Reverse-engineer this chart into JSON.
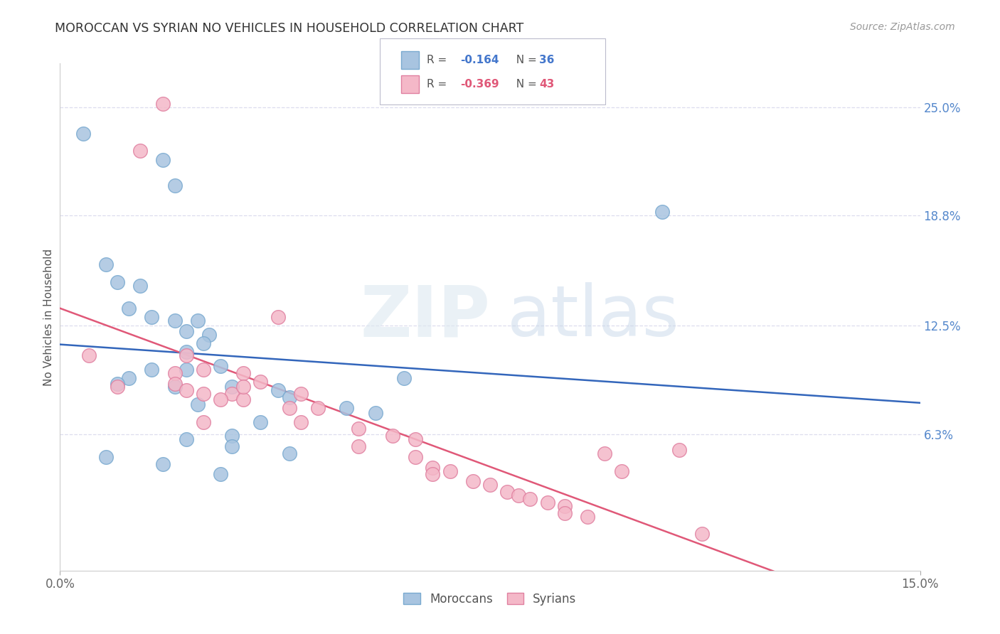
{
  "title": "MOROCCAN VS SYRIAN NO VEHICLES IN HOUSEHOLD CORRELATION CHART",
  "source": "Source: ZipAtlas.com",
  "ylabel": "No Vehicles in Household",
  "ylabel_ticks_right": [
    "25.0%",
    "18.8%",
    "12.5%",
    "6.3%"
  ],
  "ylabel_ticks_right_vals": [
    0.25,
    0.188,
    0.125,
    0.063
  ],
  "x_min": 0.0,
  "x_max": 0.15,
  "y_min": -0.015,
  "y_max": 0.275,
  "moroccan_color": "#a8c4e0",
  "moroccan_edge": "#7aaad0",
  "syrian_color": "#f4b8c8",
  "syrian_edge": "#e080a0",
  "line_moroccan_color": "#3366bb",
  "line_syrian_color": "#e05878",
  "background_color": "#ffffff",
  "grid_color": "#ddddee",
  "legend_R_moroccan": "-0.164",
  "legend_N_moroccan": "36",
  "legend_R_syrian": "-0.369",
  "legend_N_syrian": "43",
  "moroccan_x": [
    0.004,
    0.018,
    0.02,
    0.008,
    0.01,
    0.014,
    0.012,
    0.016,
    0.02,
    0.024,
    0.022,
    0.026,
    0.025,
    0.022,
    0.016,
    0.012,
    0.01,
    0.02,
    0.03,
    0.038,
    0.04,
    0.024,
    0.05,
    0.055,
    0.035,
    0.03,
    0.022,
    0.03,
    0.04,
    0.008,
    0.018,
    0.028,
    0.06,
    0.105,
    0.022,
    0.028
  ],
  "moroccan_y": [
    0.235,
    0.22,
    0.205,
    0.16,
    0.15,
    0.148,
    0.135,
    0.13,
    0.128,
    0.128,
    0.122,
    0.12,
    0.115,
    0.11,
    0.1,
    0.095,
    0.092,
    0.09,
    0.09,
    0.088,
    0.084,
    0.08,
    0.078,
    0.075,
    0.07,
    0.062,
    0.06,
    0.056,
    0.052,
    0.05,
    0.046,
    0.04,
    0.095,
    0.19,
    0.1,
    0.102
  ],
  "syrian_x": [
    0.018,
    0.014,
    0.005,
    0.022,
    0.02,
    0.025,
    0.02,
    0.01,
    0.022,
    0.025,
    0.03,
    0.028,
    0.032,
    0.038,
    0.032,
    0.035,
    0.032,
    0.042,
    0.04,
    0.045,
    0.025,
    0.042,
    0.052,
    0.058,
    0.062,
    0.052,
    0.062,
    0.065,
    0.068,
    0.065,
    0.072,
    0.075,
    0.078,
    0.08,
    0.082,
    0.085,
    0.088,
    0.088,
    0.092,
    0.095,
    0.098,
    0.108,
    0.112
  ],
  "syrian_y": [
    0.252,
    0.225,
    0.108,
    0.108,
    0.098,
    0.1,
    0.092,
    0.09,
    0.088,
    0.086,
    0.086,
    0.083,
    0.083,
    0.13,
    0.098,
    0.093,
    0.09,
    0.086,
    0.078,
    0.078,
    0.07,
    0.07,
    0.066,
    0.062,
    0.06,
    0.056,
    0.05,
    0.044,
    0.042,
    0.04,
    0.036,
    0.034,
    0.03,
    0.028,
    0.026,
    0.024,
    0.022,
    0.018,
    0.016,
    0.052,
    0.042,
    0.054,
    0.006
  ]
}
